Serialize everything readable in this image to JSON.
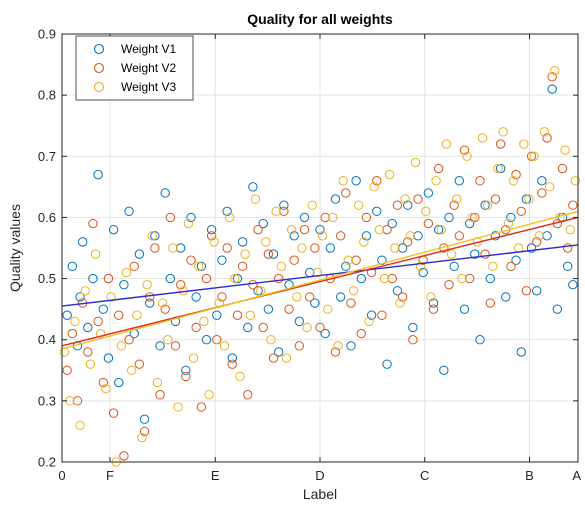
{
  "chart_data": {
    "type": "scatter",
    "title": "Quality for all weights",
    "xlabel": "Label",
    "ylabel": "Quality values",
    "ylim": [
      0.2,
      0.9
    ],
    "yticks": [
      0.2,
      0.3,
      0.4,
      0.5,
      0.6,
      0.7,
      0.8,
      0.9
    ],
    "ytick_labels": [
      "0.2",
      "0.3",
      "0.4",
      "0.5",
      "0.6",
      "0.7",
      "0.8",
      "0.9"
    ],
    "xlim": [
      0,
      1
    ],
    "xticks": [
      0,
      0.093,
      0.297,
      0.5,
      0.703,
      0.906,
      1
    ],
    "xtick_labels": [
      "0",
      "F",
      "E",
      "D",
      "C",
      "B",
      "A"
    ],
    "grid": true,
    "legend_position": "top-left",
    "series": [
      {
        "name": "Weight V1",
        "color": "#0072BD",
        "trend": [
          0.455,
          0.555
        ],
        "points": [
          [
            0.01,
            0.44
          ],
          [
            0.02,
            0.52
          ],
          [
            0.03,
            0.39
          ],
          [
            0.035,
            0.47
          ],
          [
            0.04,
            0.56
          ],
          [
            0.05,
            0.42
          ],
          [
            0.06,
            0.5
          ],
          [
            0.07,
            0.67
          ],
          [
            0.08,
            0.45
          ],
          [
            0.09,
            0.37
          ],
          [
            0.1,
            0.58
          ],
          [
            0.11,
            0.33
          ],
          [
            0.12,
            0.49
          ],
          [
            0.13,
            0.61
          ],
          [
            0.14,
            0.41
          ],
          [
            0.15,
            0.54
          ],
          [
            0.16,
            0.27
          ],
          [
            0.17,
            0.46
          ],
          [
            0.18,
            0.57
          ],
          [
            0.19,
            0.39
          ],
          [
            0.2,
            0.64
          ],
          [
            0.21,
            0.5
          ],
          [
            0.22,
            0.43
          ],
          [
            0.23,
            0.55
          ],
          [
            0.24,
            0.35
          ],
          [
            0.25,
            0.6
          ],
          [
            0.26,
            0.47
          ],
          [
            0.27,
            0.52
          ],
          [
            0.28,
            0.4
          ],
          [
            0.29,
            0.58
          ],
          [
            0.3,
            0.44
          ],
          [
            0.31,
            0.53
          ],
          [
            0.32,
            0.61
          ],
          [
            0.33,
            0.37
          ],
          [
            0.34,
            0.5
          ],
          [
            0.35,
            0.56
          ],
          [
            0.36,
            0.42
          ],
          [
            0.37,
            0.65
          ],
          [
            0.38,
            0.48
          ],
          [
            0.39,
            0.59
          ],
          [
            0.4,
            0.45
          ],
          [
            0.41,
            0.54
          ],
          [
            0.42,
            0.38
          ],
          [
            0.43,
            0.62
          ],
          [
            0.44,
            0.49
          ],
          [
            0.45,
            0.57
          ],
          [
            0.46,
            0.43
          ],
          [
            0.47,
            0.6
          ],
          [
            0.48,
            0.51
          ],
          [
            0.49,
            0.46
          ],
          [
            0.5,
            0.58
          ],
          [
            0.51,
            0.41
          ],
          [
            0.52,
            0.55
          ],
          [
            0.53,
            0.63
          ],
          [
            0.54,
            0.47
          ],
          [
            0.55,
            0.52
          ],
          [
            0.56,
            0.39
          ],
          [
            0.57,
            0.66
          ],
          [
            0.58,
            0.5
          ],
          [
            0.59,
            0.57
          ],
          [
            0.6,
            0.44
          ],
          [
            0.61,
            0.61
          ],
          [
            0.62,
            0.53
          ],
          [
            0.63,
            0.36
          ],
          [
            0.64,
            0.59
          ],
          [
            0.65,
            0.48
          ],
          [
            0.66,
            0.55
          ],
          [
            0.67,
            0.62
          ],
          [
            0.68,
            0.42
          ],
          [
            0.69,
            0.57
          ],
          [
            0.7,
            0.51
          ],
          [
            0.71,
            0.64
          ],
          [
            0.72,
            0.46
          ],
          [
            0.73,
            0.58
          ],
          [
            0.74,
            0.35
          ],
          [
            0.75,
            0.6
          ],
          [
            0.76,
            0.52
          ],
          [
            0.77,
            0.66
          ],
          [
            0.78,
            0.45
          ],
          [
            0.79,
            0.59
          ],
          [
            0.8,
            0.54
          ],
          [
            0.81,
            0.4
          ],
          [
            0.82,
            0.62
          ],
          [
            0.83,
            0.5
          ],
          [
            0.84,
            0.57
          ],
          [
            0.85,
            0.68
          ],
          [
            0.86,
            0.47
          ],
          [
            0.87,
            0.6
          ],
          [
            0.88,
            0.53
          ],
          [
            0.89,
            0.38
          ],
          [
            0.9,
            0.63
          ],
          [
            0.91,
            0.55
          ],
          [
            0.92,
            0.48
          ],
          [
            0.93,
            0.66
          ],
          [
            0.94,
            0.57
          ],
          [
            0.95,
            0.81
          ],
          [
            0.96,
            0.45
          ],
          [
            0.97,
            0.6
          ],
          [
            0.98,
            0.52
          ],
          [
            0.99,
            0.49
          ]
        ]
      },
      {
        "name": "Weight V2",
        "color": "#D95319",
        "trend": [
          0.39,
          0.6
        ],
        "points": [
          [
            0.01,
            0.35
          ],
          [
            0.02,
            0.41
          ],
          [
            0.03,
            0.3
          ],
          [
            0.04,
            0.46
          ],
          [
            0.05,
            0.38
          ],
          [
            0.06,
            0.59
          ],
          [
            0.07,
            0.43
          ],
          [
            0.08,
            0.33
          ],
          [
            0.09,
            0.5
          ],
          [
            0.1,
            0.28
          ],
          [
            0.11,
            0.44
          ],
          [
            0.12,
            0.21
          ],
          [
            0.13,
            0.4
          ],
          [
            0.14,
            0.52
          ],
          [
            0.15,
            0.36
          ],
          [
            0.16,
            0.25
          ],
          [
            0.17,
            0.47
          ],
          [
            0.18,
            0.55
          ],
          [
            0.19,
            0.31
          ],
          [
            0.2,
            0.45
          ],
          [
            0.21,
            0.6
          ],
          [
            0.22,
            0.39
          ],
          [
            0.23,
            0.49
          ],
          [
            0.24,
            0.34
          ],
          [
            0.25,
            0.53
          ],
          [
            0.26,
            0.42
          ],
          [
            0.27,
            0.29
          ],
          [
            0.28,
            0.5
          ],
          [
            0.29,
            0.57
          ],
          [
            0.3,
            0.4
          ],
          [
            0.31,
            0.47
          ],
          [
            0.32,
            0.55
          ],
          [
            0.33,
            0.36
          ],
          [
            0.34,
            0.44
          ],
          [
            0.35,
            0.52
          ],
          [
            0.36,
            0.31
          ],
          [
            0.37,
            0.49
          ],
          [
            0.38,
            0.58
          ],
          [
            0.39,
            0.42
          ],
          [
            0.4,
            0.54
          ],
          [
            0.41,
            0.37
          ],
          [
            0.42,
            0.5
          ],
          [
            0.43,
            0.61
          ],
          [
            0.44,
            0.45
          ],
          [
            0.45,
            0.53
          ],
          [
            0.46,
            0.39
          ],
          [
            0.47,
            0.58
          ],
          [
            0.48,
            0.47
          ],
          [
            0.49,
            0.55
          ],
          [
            0.5,
            0.42
          ],
          [
            0.51,
            0.6
          ],
          [
            0.52,
            0.5
          ],
          [
            0.53,
            0.38
          ],
          [
            0.54,
            0.57
          ],
          [
            0.55,
            0.64
          ],
          [
            0.56,
            0.46
          ],
          [
            0.57,
            0.53
          ],
          [
            0.58,
            0.41
          ],
          [
            0.59,
            0.6
          ],
          [
            0.6,
            0.51
          ],
          [
            0.61,
            0.66
          ],
          [
            0.62,
            0.44
          ],
          [
            0.63,
            0.58
          ],
          [
            0.64,
            0.5
          ],
          [
            0.65,
            0.62
          ],
          [
            0.66,
            0.47
          ],
          [
            0.67,
            0.56
          ],
          [
            0.68,
            0.4
          ],
          [
            0.69,
            0.63
          ],
          [
            0.7,
            0.53
          ],
          [
            0.71,
            0.59
          ],
          [
            0.72,
            0.45
          ],
          [
            0.73,
            0.68
          ],
          [
            0.74,
            0.55
          ],
          [
            0.75,
            0.49
          ],
          [
            0.76,
            0.62
          ],
          [
            0.77,
            0.57
          ],
          [
            0.78,
            0.71
          ],
          [
            0.79,
            0.5
          ],
          [
            0.8,
            0.6
          ],
          [
            0.81,
            0.66
          ],
          [
            0.82,
            0.54
          ],
          [
            0.83,
            0.46
          ],
          [
            0.84,
            0.63
          ],
          [
            0.85,
            0.72
          ],
          [
            0.86,
            0.58
          ],
          [
            0.87,
            0.52
          ],
          [
            0.88,
            0.67
          ],
          [
            0.89,
            0.61
          ],
          [
            0.9,
            0.48
          ],
          [
            0.91,
            0.7
          ],
          [
            0.92,
            0.56
          ],
          [
            0.93,
            0.64
          ],
          [
            0.94,
            0.73
          ],
          [
            0.95,
            0.83
          ],
          [
            0.96,
            0.59
          ],
          [
            0.97,
            0.68
          ],
          [
            0.98,
            0.55
          ],
          [
            0.99,
            0.62
          ]
        ]
      },
      {
        "name": "Weight V3",
        "color": "#EDB120",
        "trend": [
          0.385,
          0.61
        ],
        "points": [
          [
            0.005,
            0.38
          ],
          [
            0.015,
            0.3
          ],
          [
            0.025,
            0.43
          ],
          [
            0.035,
            0.26
          ],
          [
            0.045,
            0.48
          ],
          [
            0.055,
            0.36
          ],
          [
            0.065,
            0.54
          ],
          [
            0.075,
            0.41
          ],
          [
            0.085,
            0.32
          ],
          [
            0.095,
            0.47
          ],
          [
            0.105,
            0.2
          ],
          [
            0.115,
            0.39
          ],
          [
            0.125,
            0.51
          ],
          [
            0.135,
            0.35
          ],
          [
            0.145,
            0.44
          ],
          [
            0.155,
            0.24
          ],
          [
            0.165,
            0.49
          ],
          [
            0.175,
            0.57
          ],
          [
            0.185,
            0.33
          ],
          [
            0.195,
            0.46
          ],
          [
            0.205,
            0.4
          ],
          [
            0.215,
            0.55
          ],
          [
            0.225,
            0.29
          ],
          [
            0.235,
            0.48
          ],
          [
            0.245,
            0.59
          ],
          [
            0.255,
            0.37
          ],
          [
            0.265,
            0.52
          ],
          [
            0.275,
            0.43
          ],
          [
            0.285,
            0.31
          ],
          [
            0.295,
            0.56
          ],
          [
            0.305,
            0.46
          ],
          [
            0.315,
            0.39
          ],
          [
            0.325,
            0.6
          ],
          [
            0.335,
            0.5
          ],
          [
            0.345,
            0.34
          ],
          [
            0.355,
            0.54
          ],
          [
            0.365,
            0.44
          ],
          [
            0.375,
            0.63
          ],
          [
            0.385,
            0.48
          ],
          [
            0.395,
            0.56
          ],
          [
            0.405,
            0.4
          ],
          [
            0.415,
            0.61
          ],
          [
            0.425,
            0.52
          ],
          [
            0.435,
            0.37
          ],
          [
            0.445,
            0.58
          ],
          [
            0.455,
            0.47
          ],
          [
            0.465,
            0.55
          ],
          [
            0.475,
            0.42
          ],
          [
            0.485,
            0.62
          ],
          [
            0.495,
            0.51
          ],
          [
            0.505,
            0.57
          ],
          [
            0.515,
            0.45
          ],
          [
            0.525,
            0.6
          ],
          [
            0.535,
            0.39
          ],
          [
            0.545,
            0.66
          ],
          [
            0.555,
            0.53
          ],
          [
            0.565,
            0.48
          ],
          [
            0.575,
            0.62
          ],
          [
            0.585,
            0.56
          ],
          [
            0.595,
            0.43
          ],
          [
            0.605,
            0.65
          ],
          [
            0.615,
            0.58
          ],
          [
            0.625,
            0.5
          ],
          [
            0.635,
            0.67
          ],
          [
            0.645,
            0.55
          ],
          [
            0.655,
            0.46
          ],
          [
            0.665,
            0.63
          ],
          [
            0.675,
            0.57
          ],
          [
            0.685,
            0.69
          ],
          [
            0.695,
            0.52
          ],
          [
            0.705,
            0.61
          ],
          [
            0.715,
            0.47
          ],
          [
            0.725,
            0.66
          ],
          [
            0.735,
            0.58
          ],
          [
            0.745,
            0.72
          ],
          [
            0.755,
            0.54
          ],
          [
            0.765,
            0.63
          ],
          [
            0.775,
            0.5
          ],
          [
            0.785,
            0.7
          ],
          [
            0.795,
            0.6
          ],
          [
            0.805,
            0.56
          ],
          [
            0.815,
            0.73
          ],
          [
            0.825,
            0.62
          ],
          [
            0.835,
            0.52
          ],
          [
            0.845,
            0.68
          ],
          [
            0.855,
            0.74
          ],
          [
            0.865,
            0.59
          ],
          [
            0.875,
            0.66
          ],
          [
            0.885,
            0.55
          ],
          [
            0.895,
            0.72
          ],
          [
            0.905,
            0.63
          ],
          [
            0.915,
            0.7
          ],
          [
            0.925,
            0.57
          ],
          [
            0.935,
            0.74
          ],
          [
            0.945,
            0.65
          ],
          [
            0.955,
            0.84
          ],
          [
            0.965,
            0.6
          ],
          [
            0.975,
            0.71
          ],
          [
            0.985,
            0.58
          ],
          [
            0.995,
            0.66
          ]
        ]
      }
    ]
  }
}
